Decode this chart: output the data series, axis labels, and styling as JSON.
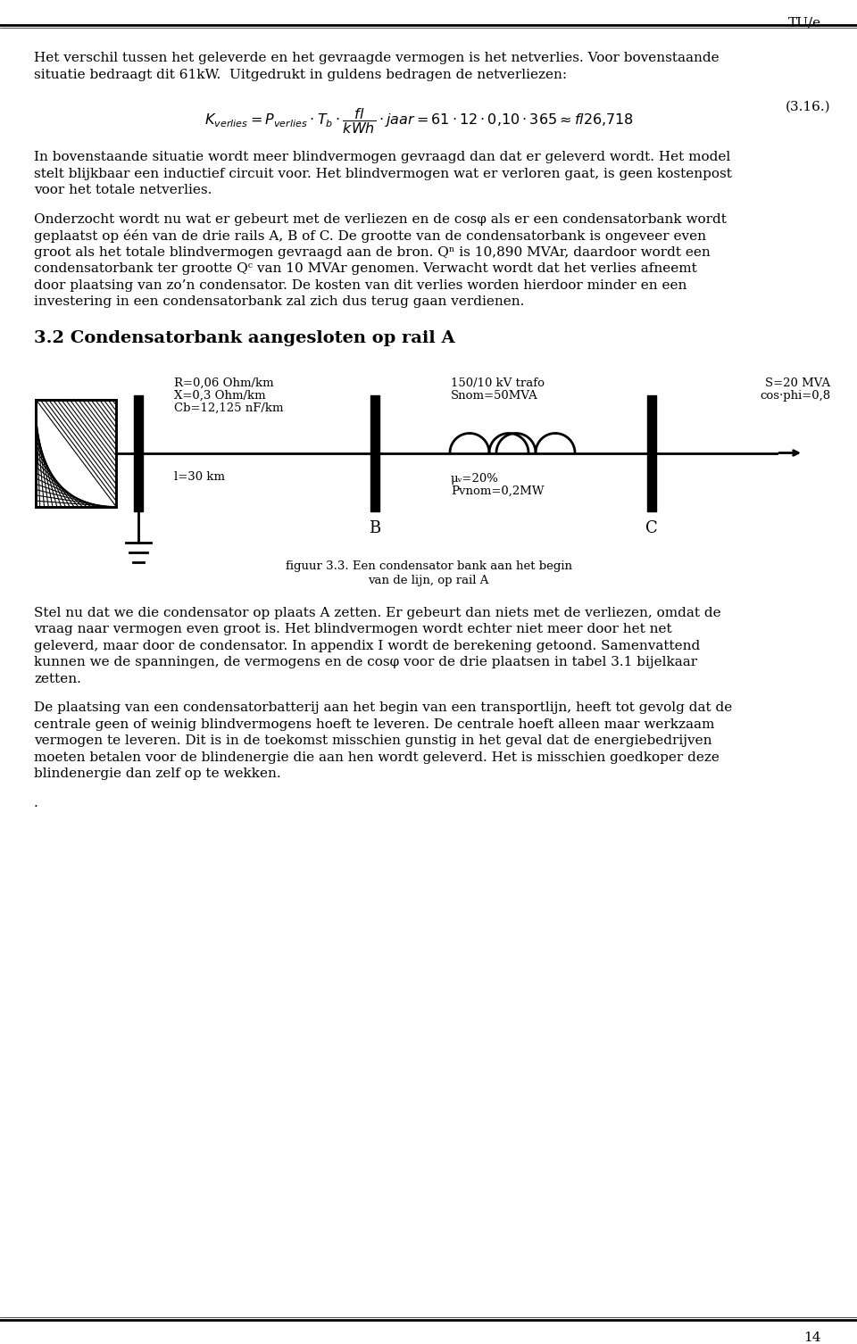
{
  "background_color": "#ffffff",
  "page_width": 9.6,
  "page_height": 15.06,
  "header_text": "TU/e",
  "footer_page": "14",
  "paragraph1_l1": "Het verschil tussen het geleverde en het gevraagde vermogen is het netverlies. Voor bovenstaande",
  "paragraph1_l2": "situatie bedraagt dit 61kW.  Uitgedrukt in guldens bedragen de netverliezen:",
  "formula_label": "(3.16.)",
  "paragraph2_l1": "In bovenstaande situatie wordt meer blindvermogen gevraagd dan dat er geleverd wordt. Het model",
  "paragraph2_l2": "stelt blijkbaar een inductief circuit voor. Het blindvermogen wat er verloren gaat, is geen kostenpost",
  "paragraph2_l3": "voor het totale netverlies.",
  "paragraph3_l1": "Onderzocht wordt nu wat er gebeurt met de verliezen en de cosφ als er een condensatorbank wordt",
  "paragraph3_l2": "geplaatst op één van de drie rails A, B of C. De grootte van de condensatorbank is ongeveer even",
  "paragraph3_l3": "groot als het totale blindvermogen gevraagd aan de bron. Qⁿ is 10,890 MVAr, daardoor wordt een",
  "paragraph3_l4": "condensatorbank ter grootte Qᶜ van 10 MVAr genomen. Verwacht wordt dat het verlies afneemt",
  "paragraph3_l5": "door plaatsing van zo’n condensator. De kosten van dit verlies worden hierdoor minder en een",
  "paragraph3_l6": "investering in een condensatorbank zal zich dus terug gaan verdienen.",
  "section_title": "3.2 Condensatorbank aangesloten op rail A",
  "label_R": "R=0,06 Ohm/km",
  "label_X": "X=0,3 Ohm/km",
  "label_Cb": "Cb=12,125 nF/km",
  "label_l": "l=30 km",
  "label_trafo_top": "150/10 kV trafo",
  "label_Snom": "Snom=50MVA",
  "label_mu": "μᵥ=20%",
  "label_Pvnom": "Pvnom=0,2MW",
  "label_S": "S=20 MVA",
  "label_cosphi": "cos·phi=0,8",
  "label_B": "B",
  "label_C": "C",
  "figure_caption_line1": "figuur 3.3. Een condensator bank aan het begin",
  "figure_caption_line2": "van de lijn, op rail A",
  "paragraph4_l1": "Stel nu dat we die condensator op plaats A zetten. Er gebeurt dan niets met de verliezen, omdat de",
  "paragraph4_l2": "vraag naar vermogen even groot is. Het blindvermogen wordt echter niet meer door het net",
  "paragraph4_l3": "geleverd, maar door de condensator. In appendix I wordt de berekening getoond. Samenvattend",
  "paragraph4_l4": "kunnen we de spanningen, de vermogens en de cosφ voor de drie plaatsen in tabel 3.1 bijelkaar",
  "paragraph4_l5": "zetten.",
  "paragraph5_l1": "De plaatsing van een condensatorbatterij aan het begin van een transportlijn, heeft tot gevolg dat de",
  "paragraph5_l2": "centrale geen of weinig blindvermogens hoeft te leveren. De centrale hoeft alleen maar werkzaam",
  "paragraph5_l3": "vermogen te leveren. Dit is in de toekomst misschien gunstig in het geval dat de energiebedrijven",
  "paragraph5_l4": "moeten betalen voor de blindenergie die aan hen wordt geleverd. Het is misschien goedkoper deze",
  "paragraph5_l5": "blindenergie dan zelf op te wekken.",
  "dot_text": ".",
  "text_color": "#000000"
}
